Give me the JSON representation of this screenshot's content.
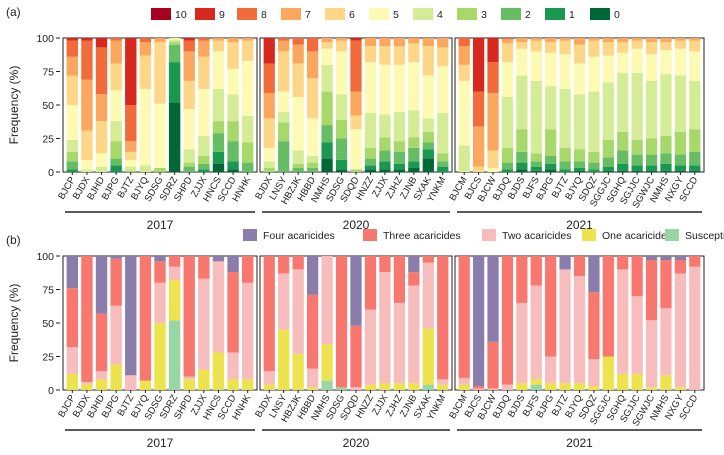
{
  "chart_data": [
    {
      "panel_label": "(a)",
      "type": "bar",
      "stacked": true,
      "ylabel": "Frequency (%)",
      "ylim": [
        0,
        100
      ],
      "yticks": [
        0,
        25,
        50,
        75,
        100
      ],
      "legend_position": "top",
      "legend": [
        {
          "name": "10",
          "color": "#a8001e"
        },
        {
          "name": "9",
          "color": "#d7281d"
        },
        {
          "name": "8",
          "color": "#f26b3a"
        },
        {
          "name": "7",
          "color": "#fba75e"
        },
        {
          "name": "6",
          "color": "#fdd687"
        },
        {
          "name": "5",
          "color": "#fdfab3"
        },
        {
          "name": "4",
          "color": "#d4ec95"
        },
        {
          "name": "3",
          "color": "#a6d96a"
        },
        {
          "name": "2",
          "color": "#66bd63"
        },
        {
          "name": "1",
          "color": "#1a9850"
        },
        {
          "name": "0",
          "color": "#006837"
        }
      ],
      "groups": [
        {
          "year": "2017",
          "categories": [
            "BJCP",
            "BJDX",
            "BJHD",
            "BJPG",
            "BJTZ",
            "BJYQ",
            "SDSG",
            "SDRZ",
            "SHPD",
            "ZJJX",
            "HNCS",
            "SCCD",
            "HNHK"
          ]
        },
        {
          "year": "2020",
          "categories": [
            "BJDX",
            "LNSY",
            "HBZJK",
            "HBBD",
            "NMHS",
            "SDSG",
            "SDQD",
            "HNZZ",
            "ZJJX",
            "ZJHZ",
            "ZJNB",
            "SXAK",
            "YNKM"
          ]
        },
        {
          "year": "2021",
          "categories": [
            "BJCM",
            "BJCS",
            "BJCW",
            "BJDQ",
            "BJDS",
            "BJFS",
            "BJPG",
            "BJTZ",
            "BJYQ",
            "SDQZ",
            "SGGJC",
            "SGHQ",
            "SGJJC",
            "SGWJC",
            "NMHS",
            "NXGY",
            "SCCD"
          ]
        }
      ],
      "series_order": [
        "10",
        "9",
        "8",
        "7",
        "6",
        "5",
        "4",
        "3",
        "2",
        "1",
        "0"
      ],
      "values": [
        [
          0,
          2,
          12,
          14,
          22,
          26,
          9,
          7,
          6,
          2,
          0
        ],
        [
          0,
          2,
          29,
          38,
          22,
          7,
          2,
          0,
          0,
          0,
          0
        ],
        [
          0,
          7,
          35,
          20,
          24,
          10,
          4,
          0,
          0,
          0,
          0
        ],
        [
          0,
          0,
          2,
          17,
          20,
          23,
          15,
          13,
          5,
          5,
          0
        ],
        [
          0,
          50,
          27,
          8,
          6,
          5,
          3,
          1,
          0,
          0,
          0
        ],
        [
          0,
          0,
          3,
          10,
          25,
          57,
          5,
          0,
          0,
          0,
          0
        ],
        [
          0,
          0,
          0,
          3,
          46,
          48,
          0,
          3,
          0,
          0,
          0
        ],
        [
          0,
          0,
          0,
          0,
          0,
          1,
          2,
          2,
          13,
          30,
          52
        ],
        [
          0,
          2,
          8,
          22,
          21,
          30,
          10,
          3,
          4,
          0,
          0
        ],
        [
          0,
          0,
          2,
          12,
          24,
          35,
          15,
          6,
          4,
          2,
          0
        ],
        [
          0,
          0,
          0,
          2,
          8,
          28,
          24,
          9,
          14,
          9,
          6
        ],
        [
          0,
          0,
          0,
          3,
          20,
          19,
          20,
          15,
          15,
          6,
          2
        ],
        [
          0,
          0,
          0,
          2,
          15,
          41,
          20,
          15,
          7,
          0,
          0
        ],
        [
          0,
          19,
          22,
          19,
          22,
          10,
          5,
          3,
          0,
          0,
          0
        ],
        [
          0,
          0,
          2,
          8,
          30,
          15,
          8,
          14,
          23,
          0,
          0
        ],
        [
          0,
          0,
          5,
          14,
          25,
          40,
          10,
          3,
          3,
          0,
          0
        ],
        [
          0,
          0,
          10,
          20,
          30,
          28,
          5,
          4,
          3,
          0,
          0
        ],
        [
          0,
          0,
          0,
          3,
          5,
          12,
          20,
          25,
          13,
          12,
          10
        ],
        [
          0,
          0,
          0,
          2,
          8,
          32,
          19,
          14,
          16,
          7,
          2
        ],
        [
          0,
          2,
          38,
          18,
          10,
          30,
          0,
          2,
          0,
          0,
          0
        ],
        [
          0,
          0,
          0,
          6,
          12,
          38,
          26,
          8,
          5,
          3,
          2
        ],
        [
          0,
          0,
          0,
          6,
          14,
          37,
          17,
          10,
          8,
          6,
          2
        ],
        [
          0,
          0,
          0,
          6,
          14,
          35,
          22,
          8,
          9,
          4,
          2
        ],
        [
          0,
          0,
          0,
          4,
          14,
          36,
          20,
          8,
          10,
          5,
          3
        ],
        [
          0,
          0,
          0,
          6,
          22,
          32,
          10,
          8,
          5,
          7,
          10
        ],
        [
          0,
          0,
          0,
          7,
          14,
          35,
          30,
          6,
          4,
          4,
          0
        ],
        [
          0,
          0,
          6,
          14,
          12,
          48,
          20,
          0,
          0,
          0,
          0
        ],
        [
          0,
          40,
          26,
          30,
          4,
          0,
          0,
          0,
          0,
          0,
          0
        ],
        [
          0,
          18,
          23,
          43,
          13,
          3,
          0,
          0,
          0,
          0,
          0
        ],
        [
          0,
          0,
          1,
          3,
          14,
          26,
          38,
          11,
          5,
          2,
          0
        ],
        [
          0,
          0,
          0,
          3,
          5,
          20,
          40,
          17,
          8,
          5,
          2
        ],
        [
          0,
          0,
          0,
          2,
          8,
          22,
          54,
          6,
          4,
          3,
          1
        ],
        [
          0,
          0,
          0,
          3,
          8,
          25,
          32,
          20,
          6,
          4,
          2
        ],
        [
          0,
          0,
          0,
          2,
          10,
          26,
          44,
          10,
          6,
          2,
          0
        ],
        [
          0,
          0,
          0,
          5,
          14,
          23,
          41,
          9,
          5,
          2,
          1
        ],
        [
          0,
          0,
          0,
          2,
          12,
          26,
          45,
          8,
          5,
          2,
          0
        ],
        [
          0,
          0,
          0,
          3,
          10,
          20,
          43,
          13,
          7,
          3,
          1
        ],
        [
          0,
          0,
          0,
          3,
          8,
          15,
          44,
          14,
          10,
          5,
          1
        ],
        [
          0,
          0,
          0,
          2,
          6,
          18,
          50,
          11,
          8,
          4,
          1
        ],
        [
          0,
          0,
          0,
          3,
          9,
          20,
          43,
          12,
          8,
          4,
          1
        ],
        [
          0,
          0,
          0,
          3,
          6,
          18,
          46,
          13,
          8,
          5,
          1
        ],
        [
          0,
          0,
          0,
          2,
          6,
          20,
          42,
          17,
          8,
          4,
          1
        ],
        [
          0,
          0,
          0,
          2,
          8,
          22,
          36,
          17,
          10,
          4,
          1
        ]
      ]
    },
    {
      "panel_label": "(b)",
      "type": "bar",
      "stacked": true,
      "ylabel": "Frequency (%)",
      "ylim": [
        0,
        100
      ],
      "yticks": [
        0,
        25,
        50,
        75,
        100
      ],
      "legend_position": "top",
      "legend": [
        {
          "name": "Four acaricides",
          "color": "#8a7cab"
        },
        {
          "name": "Three acaricides",
          "color": "#f8786f"
        },
        {
          "name": "Two acaricides",
          "color": "#f7bcbc"
        },
        {
          "name": "One acaricide",
          "color": "#ece34f"
        },
        {
          "name": "Susceptible",
          "color": "#98d6a3"
        }
      ],
      "groups": [
        {
          "year": "2017",
          "categories": [
            "BJCP",
            "BJDX",
            "BJHD",
            "BJPG",
            "BJTZ",
            "BJYQ",
            "SDSG",
            "SDRZ",
            "SHPD",
            "ZJJX",
            "HNCS",
            "SCCD",
            "HNHK"
          ]
        },
        {
          "year": "2020",
          "categories": [
            "BJDX",
            "LNSY",
            "HBZJK",
            "HBBD",
            "NMHS",
            "SDSG",
            "SDQD",
            "HNZZ",
            "ZJJX",
            "ZJHZ",
            "ZJNB",
            "SXAK",
            "YNKM"
          ]
        },
        {
          "year": "2021",
          "categories": [
            "BJCM",
            "BJCS",
            "BJCW",
            "BJDQ",
            "BJDS",
            "BJFS",
            "BJPG",
            "BJTZ",
            "BJYQ",
            "SDQZ",
            "SGGJC",
            "SGHQ",
            "SGJJC",
            "SGWJC",
            "NMHS",
            "NXGY",
            "SCCD"
          ]
        }
      ],
      "series_order": [
        "Four acaricides",
        "Three acaricides",
        "Two acaricides",
        "One acaricide",
        "Susceptible"
      ],
      "values": [
        [
          24,
          44,
          20,
          12,
          0
        ],
        [
          0,
          94,
          2,
          4,
          0
        ],
        [
          43,
          43,
          6,
          8,
          0
        ],
        [
          2,
          35,
          44,
          19,
          0
        ],
        [
          89,
          0,
          11,
          0,
          0
        ],
        [
          0,
          93,
          0,
          7,
          0
        ],
        [
          4,
          16,
          30,
          50,
          0
        ],
        [
          0,
          8,
          10,
          30,
          52
        ],
        [
          0,
          90,
          2,
          8,
          0
        ],
        [
          0,
          17,
          68,
          15,
          0
        ],
        [
          4,
          0,
          68,
          28,
          0
        ],
        [
          12,
          60,
          20,
          8,
          0
        ],
        [
          0,
          20,
          72,
          8,
          0
        ],
        [
          0,
          86,
          10,
          4,
          0
        ],
        [
          0,
          13,
          42,
          45,
          0
        ],
        [
          0,
          10,
          63,
          27,
          0
        ],
        [
          29,
          55,
          14,
          2,
          0
        ],
        [
          0,
          0,
          66,
          27,
          7
        ],
        [
          0,
          98,
          0,
          0,
          2
        ],
        [
          52,
          46,
          2,
          0,
          0
        ],
        [
          0,
          40,
          56,
          4,
          0
        ],
        [
          0,
          12,
          83,
          5,
          0
        ],
        [
          0,
          35,
          60,
          5,
          0
        ],
        [
          12,
          10,
          73,
          5,
          0
        ],
        [
          0,
          5,
          49,
          42,
          4
        ],
        [
          0,
          92,
          4,
          4,
          0
        ],
        [
          0,
          91,
          5,
          4,
          0
        ],
        [
          97,
          2,
          1,
          0,
          0
        ],
        [
          64,
          35,
          1,
          0,
          0
        ],
        [
          0,
          96,
          4,
          0,
          0
        ],
        [
          0,
          35,
          60,
          5,
          0
        ],
        [
          0,
          22,
          70,
          4,
          4
        ],
        [
          0,
          75,
          20,
          5,
          0
        ],
        [
          10,
          0,
          85,
          5,
          0
        ],
        [
          0,
          15,
          80,
          5,
          0
        ],
        [
          27,
          50,
          20,
          3,
          0
        ],
        [
          0,
          75,
          0,
          25,
          0
        ],
        [
          0,
          10,
          78,
          12,
          0
        ],
        [
          0,
          30,
          58,
          12,
          0
        ],
        [
          3,
          45,
          50,
          2,
          0
        ],
        [
          3,
          36,
          50,
          11,
          0
        ],
        [
          3,
          10,
          85,
          2,
          0
        ],
        [
          0,
          8,
          92,
          0,
          0
        ]
      ]
    }
  ]
}
